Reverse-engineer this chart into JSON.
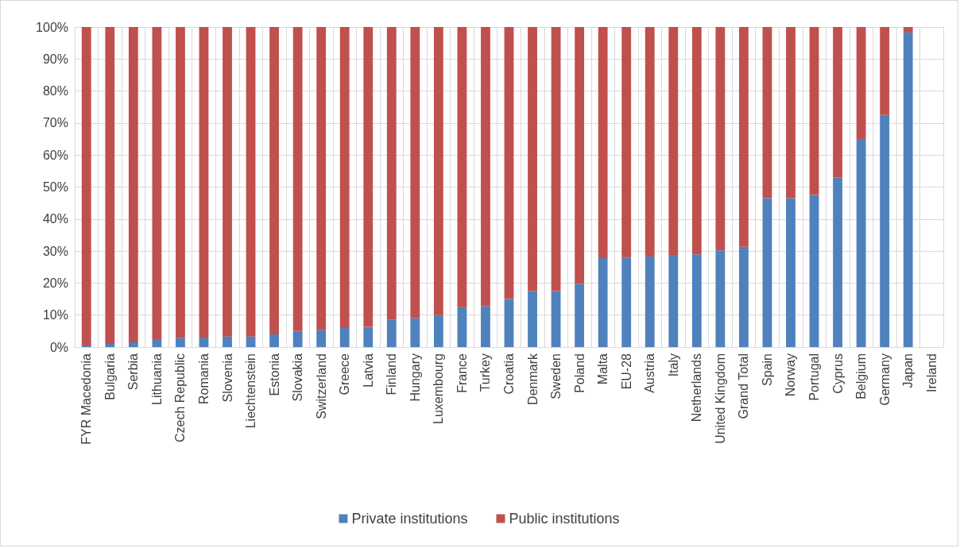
{
  "chart_data": {
    "type": "bar",
    "stacked": true,
    "categories": [
      "FYR Macedonia",
      "Bulgaria",
      "Serbia",
      "Lithuania",
      "Czech Republic",
      "Romania",
      "Slovenia",
      "Liechtenstein",
      "Estonia",
      "Slovakia",
      "Switzerland",
      "Greece",
      "Latvia",
      "Finland",
      "Hungary",
      "Luxembourg",
      "France",
      "Turkey",
      "Croatia",
      "Denmark",
      "Sweden",
      "Poland",
      "Malta",
      "EU-28",
      "Austria",
      "Italy",
      "Netherlands",
      "United Kingdom",
      "Grand Total",
      "Spain",
      "Norway",
      "Portugal",
      "Cyprus",
      "Belgium",
      "Germany",
      "Japan",
      "Ireland"
    ],
    "series": [
      {
        "name": "Private institutions",
        "color": "#4f81bd",
        "values": [
          0.5,
          1,
          1.5,
          2.5,
          2.8,
          3,
          3.3,
          3.3,
          4,
          5,
          5.3,
          6.2,
          6.3,
          8.5,
          9,
          10,
          12.5,
          12.8,
          15,
          17.5,
          17.5,
          19.8,
          27.8,
          28,
          28.3,
          28.8,
          29,
          30.2,
          31.3,
          46.5,
          46.5,
          47.5,
          53,
          65,
          72.5,
          98.3,
          null
        ]
      },
      {
        "name": "Public institutions",
        "color": "#c0504d",
        "values": [
          99.5,
          99,
          98.5,
          97.5,
          97.2,
          97,
          96.7,
          96.7,
          96,
          95,
          94.7,
          93.8,
          93.7,
          91.5,
          91,
          90,
          87.5,
          87.2,
          85,
          82.5,
          82.5,
          80.2,
          72.2,
          72,
          71.7,
          71.2,
          71,
          69.8,
          68.7,
          53.5,
          53.5,
          52.5,
          47,
          35,
          27.5,
          1.7,
          null
        ]
      }
    ],
    "ylim": [
      0,
      100
    ],
    "yticks": [
      {
        "value": 0,
        "label": "0%"
      },
      {
        "value": 10,
        "label": "10%"
      },
      {
        "value": 20,
        "label": "20%"
      },
      {
        "value": 30,
        "label": "30%"
      },
      {
        "value": 40,
        "label": "40%"
      },
      {
        "value": 50,
        "label": "50%"
      },
      {
        "value": 60,
        "label": "60%"
      },
      {
        "value": 70,
        "label": "70%"
      },
      {
        "value": 80,
        "label": "80%"
      },
      {
        "value": 90,
        "label": "90%"
      },
      {
        "value": 100,
        "label": "100%"
      }
    ],
    "grid": true,
    "legend": "bottom"
  }
}
